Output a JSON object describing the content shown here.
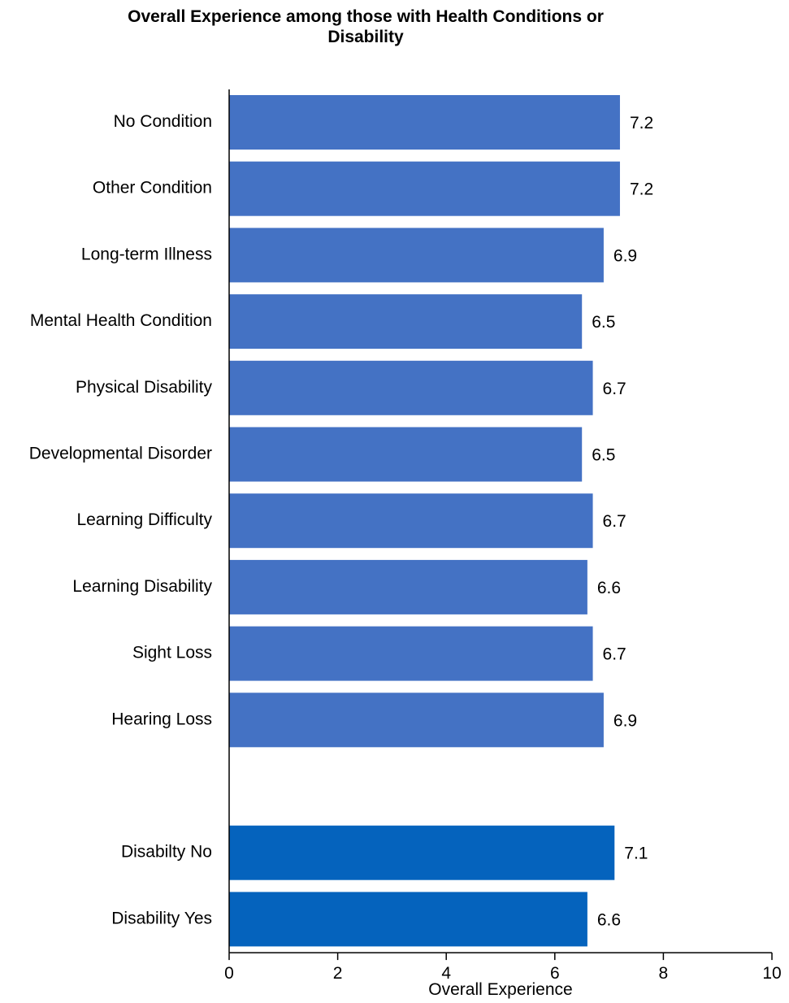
{
  "chart_data": {
    "type": "bar",
    "orientation": "horizontal",
    "title_lines": [
      "Overall Experience among those with Health Conditions or",
      "Disability"
    ],
    "xlabel": "Overall Experience",
    "ylabel": "",
    "xlim": [
      0,
      10
    ],
    "x_ticks": [
      0,
      2,
      4,
      6,
      8,
      10
    ],
    "grid": false,
    "legend": "none",
    "categories": [
      "No Condition",
      "Other Condition",
      "Long-term Illness",
      "Mental Health Condition",
      "Physical Disability",
      "Developmental Disorder",
      "Learning Difficulty",
      "Learning Disability",
      "Sight Loss",
      "Hearing Loss",
      "",
      "Disabilty No",
      "Disability Yes"
    ],
    "values": [
      7.2,
      7.2,
      6.9,
      6.5,
      6.7,
      6.5,
      6.7,
      6.6,
      6.7,
      6.9,
      null,
      7.1,
      6.6
    ],
    "data_labels": [
      "7.2",
      "7.2",
      "6.9",
      "6.5",
      "6.7",
      "6.5",
      "6.7",
      "6.6",
      "6.7",
      "6.9",
      "",
      "7.1",
      "6.6"
    ],
    "bar_colors": [
      "#4472C4",
      "#4472C4",
      "#4472C4",
      "#4472C4",
      "#4472C4",
      "#4472C4",
      "#4472C4",
      "#4472C4",
      "#4472C4",
      "#4472C4",
      "#FFFFFF",
      "#0563BD",
      "#0563BD"
    ]
  }
}
